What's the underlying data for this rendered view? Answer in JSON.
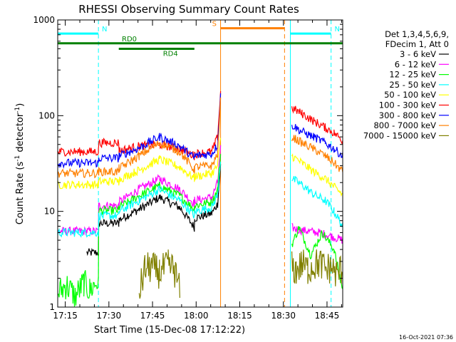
{
  "chart_data": {
    "type": "line",
    "title": "RHESSI Observing Summary Count Rates",
    "xlabel": "Start Time (15-Dec-08 17:12:22)",
    "ylabel_main": "Count Rate (s",
    "ylabel_sup1": "-1",
    "ylabel_mid": " detector",
    "ylabel_sup2": "-1",
    "ylabel_end": ")",
    "yscale": "log",
    "ylim": [
      1,
      1000
    ],
    "xlim_minutes": [
      0,
      98
    ],
    "x_ticks": [
      {
        "label": "17:15",
        "m": 2.6
      },
      {
        "label": "17:30",
        "m": 17.6
      },
      {
        "label": "17:45",
        "m": 32.6
      },
      {
        "label": "18:00",
        "m": 47.6
      },
      {
        "label": "18:15",
        "m": 62.6
      },
      {
        "label": "18:30",
        "m": 77.6
      },
      {
        "label": "18:45",
        "m": 92.6
      }
    ],
    "y_ticks": [
      {
        "label": "1",
        "v": 1
      },
      {
        "label": "10",
        "v": 10
      },
      {
        "label": "100",
        "v": 100
      },
      {
        "label": "1000",
        "v": 1000
      }
    ],
    "legend_header": [
      "Det 1,3,4,5,6,9,",
      "FDecim 1, Att 0"
    ],
    "footer_date": "16-Oct-2021 07:36",
    "bars": [
      {
        "label": "N",
        "color": "#00ffff",
        "start": 0,
        "end": 14,
        "level": 720
      },
      {
        "label": "N",
        "color": "#00ffff",
        "start": 80,
        "end": 94,
        "level": 720
      },
      {
        "label": "S",
        "color": "#ff8000",
        "start": 56,
        "end": 78,
        "level": 820
      },
      {
        "label": "RD0",
        "color": "#008000",
        "start": 0,
        "end": 98,
        "level": 570
      },
      {
        "label": "RD4",
        "color": "#008000",
        "start": 21,
        "end": 47,
        "level": 500
      }
    ],
    "event_lines": [
      {
        "m": 0,
        "color": "#00ffff",
        "dashed": false
      },
      {
        "m": 14,
        "color": "#00ffff",
        "dashed": true
      },
      {
        "m": 56,
        "color": "#ff8000",
        "dashed": false
      },
      {
        "m": 78,
        "color": "#ff8000",
        "dashed": true
      },
      {
        "m": 80,
        "color": "#00ffff",
        "dashed": false
      },
      {
        "m": 94,
        "color": "#00ffff",
        "dashed": true
      }
    ],
    "series": [
      {
        "name": "3 - 6 keV",
        "color": "#000000",
        "x": [
          10,
          14,
          14.1,
          21,
          21.1,
          28,
          35,
          42,
          47,
          47.1,
          53,
          55,
          56
        ],
        "y": [
          3.7,
          3.7,
          7.5,
          7.5,
          8.2,
          10.5,
          14,
          11,
          6.8,
          8.5,
          9.5,
          12,
          30
        ]
      },
      {
        "name": "6 - 12 keV",
        "color": "#ff00ff",
        "x": [
          0,
          10,
          14,
          14.1,
          21,
          21.1,
          28,
          35,
          42,
          47,
          47.1,
          53,
          55,
          56,
          80.5,
          82,
          86,
          90,
          94,
          98
        ],
        "y": [
          6.2,
          6.2,
          6.2,
          11.5,
          11.5,
          12.5,
          17,
          22,
          17,
          12,
          13,
          14,
          20,
          45,
          6.8,
          6.5,
          6.2,
          6,
          5.5,
          5
        ]
      },
      {
        "name": "12 - 25 keV",
        "color": "#00ff00",
        "x": [
          0,
          3,
          6,
          9,
          11,
          14,
          14.1,
          21,
          21.1,
          28,
          35,
          42,
          47,
          47.1,
          53,
          55,
          56,
          80.5,
          83,
          87,
          91,
          95,
          98
        ],
        "y": [
          1.4,
          1.7,
          1.3,
          1.8,
          1.5,
          1.9,
          10.2,
          10.2,
          11,
          14.5,
          18.5,
          14.5,
          10.5,
          11.5,
          12.5,
          17,
          40,
          4.5,
          6.8,
          3.5,
          6,
          4,
          1.5
        ]
      },
      {
        "name": "25 - 50 keV",
        "color": "#00ffff",
        "x": [
          0,
          14,
          14.1,
          21,
          21.1,
          28,
          35,
          42,
          47,
          47.1,
          53,
          55,
          56,
          80.5,
          84,
          88,
          92,
          95,
          98
        ],
        "y": [
          6,
          6,
          9,
          9,
          10,
          13,
          17,
          13,
          9,
          10,
          11,
          15,
          35,
          22,
          19,
          15,
          13,
          10,
          7
        ]
      },
      {
        "name": "50 - 100 keV",
        "color": "#ffff00",
        "x": [
          0,
          14,
          14.1,
          21,
          21.1,
          28,
          35,
          42,
          47,
          47.1,
          53,
          55,
          56,
          80.5,
          84,
          88,
          92,
          95,
          98
        ],
        "y": [
          19,
          19,
          20.5,
          20.5,
          21.5,
          27,
          35,
          29,
          22,
          23,
          25,
          30,
          60,
          38,
          32,
          26,
          22,
          18,
          15
        ]
      },
      {
        "name": "100 - 300 keV",
        "color": "#ff0000",
        "x": [
          0,
          14,
          14.1,
          21,
          21.1,
          28,
          35,
          42,
          47,
          47.1,
          53,
          55,
          56,
          80.5,
          84,
          88,
          92,
          95,
          98
        ],
        "y": [
          42,
          42,
          52,
          52,
          43,
          48,
          50,
          45,
          38,
          40,
          42,
          60,
          180,
          120,
          105,
          88,
          75,
          66,
          55
        ]
      },
      {
        "name": "300 - 800 keV",
        "color": "#0000ff",
        "x": [
          0,
          14,
          14.1,
          21,
          21.1,
          28,
          35,
          42,
          47,
          47.1,
          53,
          55,
          56,
          80.5,
          84,
          88,
          92,
          95,
          98
        ],
        "y": [
          32,
          32,
          36,
          36,
          38,
          46,
          60,
          48,
          36,
          38,
          40,
          50,
          160,
          80,
          68,
          60,
          52,
          45,
          38
        ]
      },
      {
        "name": "800 - 7000 keV",
        "color": "#ff8000",
        "x": [
          0,
          14,
          14.1,
          21,
          21.1,
          28,
          35,
          42,
          47,
          47.1,
          53,
          55,
          56,
          80.5,
          84,
          88,
          92,
          95,
          98
        ],
        "y": [
          25,
          25,
          26,
          26,
          28,
          38,
          52,
          42,
          27,
          29,
          30,
          40,
          140,
          60,
          52,
          45,
          38,
          32,
          26
        ]
      },
      {
        "name": "7000 - 15000 keV",
        "color": "#808000",
        "x": [
          28,
          30,
          32,
          35,
          38,
          40,
          42,
          80.5,
          82,
          84,
          86,
          88,
          90,
          92,
          94,
          96,
          98
        ],
        "y": [
          1.4,
          2.5,
          2.6,
          2.3,
          2.7,
          2.5,
          1.5,
          2.6,
          2.4,
          2.8,
          2.5,
          2.7,
          2.9,
          2.5,
          2.6,
          2.2,
          2.6
        ]
      }
    ]
  }
}
